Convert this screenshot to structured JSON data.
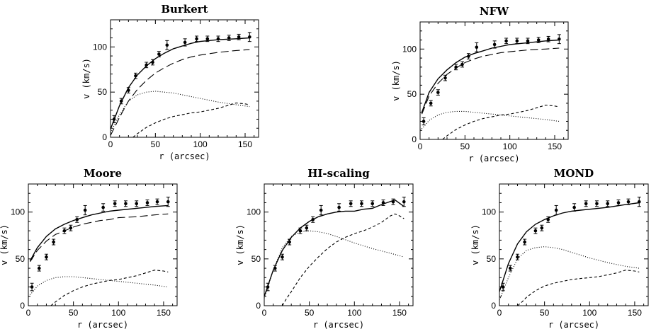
{
  "chart_data": [
    {
      "type": "line",
      "title": "Burkert",
      "xlabel": "r (arcsec)",
      "ylabel": "v (km/s)",
      "xlim": [
        0,
        165
      ],
      "ylim": [
        0,
        130
      ],
      "xticks": [
        0,
        50,
        100,
        150
      ],
      "yticks": [
        0,
        50,
        100
      ],
      "observed": {
        "x": [
          4,
          12,
          20,
          28,
          40,
          47,
          54,
          63,
          83,
          96,
          108,
          120,
          132,
          143,
          155
        ],
        "y": [
          20,
          40,
          52,
          68,
          80,
          83,
          92,
          102,
          105,
          109,
          109,
          109,
          110,
          111,
          111
        ],
        "err": [
          4,
          3,
          3,
          3,
          3,
          3,
          3,
          5,
          4,
          3,
          3,
          3,
          3,
          3,
          5
        ]
      },
      "series": [
        {
          "style": "solid",
          "x": [
            0,
            10,
            20,
            30,
            40,
            50,
            60,
            70,
            80,
            90,
            100,
            120,
            140,
            155
          ],
          "y": [
            9,
            35,
            55,
            69,
            79,
            87,
            93,
            98,
            101,
            104,
            106,
            108,
            109,
            110
          ]
        },
        {
          "style": "longdash",
          "x": [
            0,
            10,
            20,
            30,
            40,
            50,
            60,
            70,
            80,
            90,
            100,
            120,
            140,
            155
          ],
          "y": [
            2,
            22,
            40,
            53,
            63,
            71,
            77,
            82,
            86,
            89,
            91,
            94,
            96,
            97
          ]
        },
        {
          "style": "dotted",
          "x": [
            0,
            10,
            20,
            30,
            40,
            50,
            60,
            70,
            80,
            100,
            120,
            140,
            155
          ],
          "y": [
            5,
            25,
            40,
            47,
            50,
            51,
            50,
            49,
            47,
            43,
            39,
            36,
            34
          ]
        },
        {
          "style": "dashed",
          "x": [
            25,
            30,
            40,
            50,
            60,
            70,
            80,
            90,
            100,
            110,
            120,
            130,
            140,
            150,
            155
          ],
          "y": [
            0,
            4,
            11,
            16,
            20,
            23,
            25,
            27,
            28,
            30,
            32,
            35,
            38,
            37,
            36
          ]
        }
      ]
    },
    {
      "type": "line",
      "title": "NFW",
      "xlabel": "r (arcsec)",
      "ylabel": "v (km/s)",
      "xlim": [
        0,
        165
      ],
      "ylim": [
        0,
        130
      ],
      "xticks": [
        0,
        50,
        100,
        150
      ],
      "yticks": [
        0,
        50,
        100
      ],
      "observed": {
        "x": [
          4,
          12,
          20,
          28,
          40,
          47,
          54,
          63,
          83,
          96,
          108,
          120,
          132,
          143,
          155
        ],
        "y": [
          20,
          40,
          52,
          68,
          80,
          83,
          92,
          102,
          105,
          109,
          109,
          109,
          110,
          111,
          111
        ],
        "err": [
          4,
          3,
          3,
          3,
          3,
          3,
          3,
          5,
          4,
          3,
          3,
          3,
          3,
          3,
          5
        ]
      },
      "series": [
        {
          "style": "solid",
          "x": [
            2,
            10,
            20,
            30,
            40,
            50,
            60,
            70,
            80,
            90,
            100,
            120,
            140,
            155
          ],
          "y": [
            30,
            52,
            67,
            77,
            85,
            91,
            95,
            98,
            101,
            103,
            105,
            107,
            109,
            110
          ]
        },
        {
          "style": "longdash",
          "x": [
            2,
            10,
            20,
            30,
            40,
            50,
            60,
            70,
            80,
            90,
            100,
            120,
            140,
            155
          ],
          "y": [
            28,
            48,
            62,
            72,
            79,
            85,
            89,
            92,
            94,
            96,
            97,
            99,
            100,
            101
          ]
        },
        {
          "style": "dotted",
          "x": [
            0,
            5,
            10,
            20,
            30,
            40,
            50,
            60,
            80,
            100,
            120,
            140,
            155
          ],
          "y": [
            10,
            15,
            21,
            27,
            30,
            31,
            31,
            30,
            28,
            26,
            24,
            22,
            20
          ]
        },
        {
          "style": "dashed",
          "x": [
            25,
            30,
            40,
            50,
            60,
            70,
            80,
            90,
            100,
            110,
            120,
            130,
            140,
            150,
            155
          ],
          "y": [
            0,
            4,
            11,
            16,
            20,
            23,
            25,
            27,
            28,
            30,
            32,
            35,
            38,
            37,
            36
          ]
        }
      ]
    },
    {
      "type": "line",
      "title": "Moore",
      "xlabel": "r (arcsec)",
      "ylabel": "v (km/s)",
      "xlim": [
        0,
        165
      ],
      "ylim": [
        0,
        130
      ],
      "xticks": [
        0,
        50,
        100,
        150
      ],
      "yticks": [
        0,
        50,
        100
      ],
      "observed": {
        "x": [
          4,
          12,
          20,
          28,
          40,
          47,
          54,
          63,
          83,
          96,
          108,
          120,
          132,
          143,
          155
        ],
        "y": [
          20,
          40,
          52,
          68,
          80,
          83,
          92,
          102,
          105,
          109,
          109,
          109,
          110,
          111,
          111
        ],
        "err": [
          4,
          3,
          3,
          3,
          3,
          3,
          3,
          5,
          4,
          3,
          3,
          3,
          3,
          3,
          5
        ]
      },
      "series": [
        {
          "style": "solid",
          "x": [
            2,
            10,
            20,
            30,
            40,
            50,
            60,
            70,
            80,
            90,
            100,
            120,
            140,
            155
          ],
          "y": [
            48,
            62,
            74,
            82,
            87,
            91,
            94,
            97,
            99,
            101,
            102,
            104,
            106,
            107
          ]
        },
        {
          "style": "longdash",
          "x": [
            2,
            10,
            20,
            30,
            40,
            50,
            60,
            70,
            80,
            90,
            100,
            120,
            140,
            155
          ],
          "y": [
            47,
            59,
            69,
            76,
            80,
            84,
            87,
            89,
            91,
            92,
            94,
            95,
            97,
            98
          ]
        },
        {
          "style": "dotted",
          "x": [
            0,
            5,
            10,
            20,
            30,
            40,
            50,
            60,
            80,
            100,
            120,
            140,
            155
          ],
          "y": [
            10,
            15,
            21,
            27,
            30,
            31,
            31,
            30,
            28,
            26,
            24,
            22,
            20
          ]
        },
        {
          "style": "dashed",
          "x": [
            25,
            30,
            40,
            50,
            60,
            70,
            80,
            90,
            100,
            110,
            120,
            130,
            140,
            150,
            155
          ],
          "y": [
            0,
            4,
            11,
            16,
            20,
            23,
            25,
            27,
            28,
            30,
            32,
            35,
            38,
            37,
            36
          ]
        }
      ]
    },
    {
      "type": "line",
      "title": "HI-scaling",
      "xlabel": "r (arcsec)",
      "ylabel": "v (km/s)",
      "xlim": [
        0,
        165
      ],
      "ylim": [
        0,
        130
      ],
      "xticks": [
        0,
        50,
        100,
        150
      ],
      "yticks": [
        0,
        50,
        100
      ],
      "observed": {
        "x": [
          4,
          12,
          20,
          28,
          40,
          47,
          54,
          63,
          83,
          96,
          108,
          120,
          132,
          143,
          155
        ],
        "y": [
          20,
          40,
          52,
          68,
          80,
          83,
          92,
          102,
          105,
          109,
          109,
          109,
          110,
          111,
          111
        ],
        "err": [
          4,
          3,
          3,
          3,
          3,
          3,
          3,
          5,
          4,
          3,
          3,
          3,
          3,
          3,
          5
        ]
      },
      "series": [
        {
          "style": "solid",
          "x": [
            0,
            10,
            20,
            30,
            40,
            50,
            60,
            70,
            80,
            90,
            100,
            110,
            120,
            130,
            145,
            155
          ],
          "y": [
            10,
            38,
            59,
            73,
            83,
            90,
            95,
            98,
            100,
            101,
            101,
            103,
            104,
            108,
            113,
            106
          ]
        },
        {
          "style": "dotted",
          "x": [
            0,
            10,
            20,
            30,
            40,
            50,
            60,
            70,
            80,
            100,
            120,
            140,
            155
          ],
          "y": [
            8,
            38,
            62,
            74,
            79,
            80,
            79,
            77,
            74,
            67,
            61,
            56,
            52
          ]
        },
        {
          "style": "dashed",
          "x": [
            20,
            25,
            30,
            40,
            50,
            60,
            70,
            80,
            90,
            100,
            110,
            120,
            130,
            140,
            145,
            150,
            155
          ],
          "y": [
            0,
            8,
            15,
            30,
            42,
            52,
            61,
            68,
            73,
            77,
            80,
            84,
            89,
            96,
            98,
            96,
            93
          ]
        }
      ]
    },
    {
      "type": "line",
      "title": "MOND",
      "xlabel": "r (arcsec)",
      "ylabel": "v (km/s)",
      "xlim": [
        0,
        165
      ],
      "ylim": [
        0,
        130
      ],
      "xticks": [
        0,
        50,
        100,
        150
      ],
      "yticks": [
        0,
        50,
        100
      ],
      "observed": {
        "x": [
          4,
          12,
          20,
          28,
          40,
          47,
          54,
          63,
          83,
          96,
          108,
          120,
          132,
          143,
          155
        ],
        "y": [
          20,
          40,
          52,
          68,
          80,
          83,
          92,
          102,
          105,
          109,
          109,
          109,
          110,
          111,
          111
        ],
        "err": [
          4,
          3,
          3,
          3,
          3,
          3,
          3,
          5,
          4,
          3,
          3,
          3,
          3,
          3,
          5
        ]
      },
      "series": [
        {
          "style": "solid",
          "x": [
            0,
            10,
            20,
            30,
            40,
            50,
            60,
            70,
            80,
            90,
            100,
            120,
            140,
            155
          ],
          "y": [
            15,
            45,
            66,
            79,
            87,
            92,
            96,
            99,
            101,
            102,
            103,
            105,
            108,
            110
          ]
        },
        {
          "style": "dotted",
          "x": [
            0,
            10,
            20,
            30,
            40,
            50,
            60,
            70,
            80,
            100,
            120,
            140,
            155
          ],
          "y": [
            6,
            30,
            50,
            59,
            62,
            63,
            62,
            60,
            57,
            51,
            46,
            42,
            40
          ]
        },
        {
          "style": "dashed",
          "x": [
            20,
            25,
            30,
            40,
            50,
            60,
            70,
            80,
            90,
            100,
            110,
            120,
            130,
            140,
            150,
            155
          ],
          "y": [
            0,
            4,
            9,
            16,
            21,
            24,
            26,
            28,
            29,
            30,
            31,
            33,
            35,
            38,
            37,
            36
          ]
        }
      ]
    }
  ]
}
